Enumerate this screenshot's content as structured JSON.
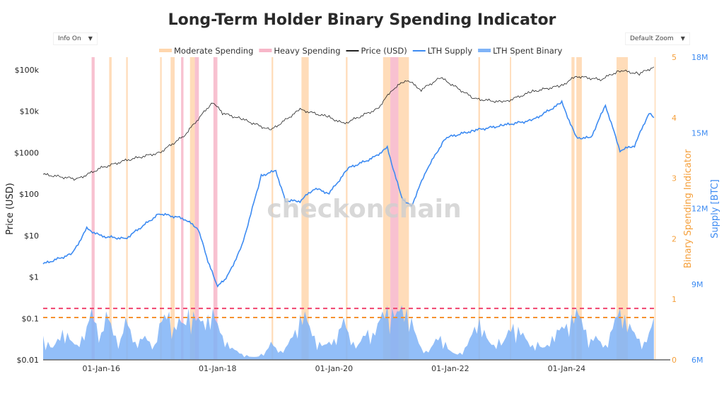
{
  "title": "Long-Term Holder Binary Spending Indicator",
  "controls": {
    "info": "Info On",
    "zoom": "Default Zoom",
    "arrow": "▼"
  },
  "watermark": "checkonchain",
  "colors": {
    "moderate": "#ffd6ad",
    "heavy": "#f7b6c8",
    "price": "#222222",
    "supply": "#3d8bf2",
    "binary": "#7fb3f7",
    "dash_heavy": "#f0436e",
    "dash_moderate": "#f5922f",
    "axis_orange": "#f5a03c",
    "axis_blue": "#3d8bf2"
  },
  "chart_data": {
    "type": "line",
    "title": "Long-Term Holder Binary Spending Indicator",
    "legend": {
      "placement": "top-center",
      "entries": [
        "Moderate Spending",
        "Heavy Spending",
        "Price (USD)",
        "LTH Supply",
        "LTH Spent Binary"
      ]
    },
    "x_range": [
      "2015-01-01",
      "2025-07-15"
    ],
    "x_ticks": [
      "01-Jan-16",
      "01-Jan-18",
      "01-Jan-20",
      "01-Jan-22",
      "01-Jan-24"
    ],
    "y_left": {
      "label": "Price (USD)",
      "scale": "log",
      "range": [
        0.01,
        100000
      ],
      "ticks": [
        "$0.01",
        "$0.1",
        "$1",
        "$10",
        "$100",
        "$1000",
        "$10k",
        "$100k"
      ]
    },
    "y_right1": {
      "label": "Binary Spending Indicator",
      "range": [
        0,
        5
      ],
      "ticks": [
        "0",
        "1",
        "2",
        "3",
        "4",
        "5"
      ]
    },
    "y_right2": {
      "label": "Supply [BTC]",
      "range": [
        6000000,
        18000000
      ],
      "ticks": [
        "6M",
        "9M",
        "12M",
        "15M",
        "18M"
      ]
    },
    "thresholds": {
      "heavy": 0.85,
      "moderate": 0.7
    },
    "price": [
      [
        "2015-01",
        300
      ],
      [
        "2015-08",
        230
      ],
      [
        "2016-01",
        430
      ],
      [
        "2016-06",
        650
      ],
      [
        "2017-01",
        1000
      ],
      [
        "2017-06",
        2500
      ],
      [
        "2017-12",
        17000
      ],
      [
        "2018-02",
        9000
      ],
      [
        "2018-06",
        6500
      ],
      [
        "2018-12",
        3500
      ],
      [
        "2019-06",
        11000
      ],
      [
        "2019-12",
        7200
      ],
      [
        "2020-03",
        5000
      ],
      [
        "2020-10",
        11500
      ],
      [
        "2021-01",
        33000
      ],
      [
        "2021-04",
        58000
      ],
      [
        "2021-07",
        33000
      ],
      [
        "2021-11",
        65000
      ],
      [
        "2022-06",
        20000
      ],
      [
        "2022-12",
        16500
      ],
      [
        "2023-06",
        30000
      ],
      [
        "2023-12",
        42000
      ],
      [
        "2024-03",
        70000
      ],
      [
        "2024-08",
        58000
      ],
      [
        "2024-12",
        97000
      ],
      [
        "2025-04",
        80000
      ],
      [
        "2025-07",
        118000
      ]
    ],
    "lth_supply_millions": [
      [
        "2015-01",
        9.8
      ],
      [
        "2015-07",
        10.2
      ],
      [
        "2015-10",
        11.2
      ],
      [
        "2016-01",
        10.9
      ],
      [
        "2016-06",
        10.8
      ],
      [
        "2017-01",
        11.8
      ],
      [
        "2017-06",
        11.6
      ],
      [
        "2017-09",
        11.2
      ],
      [
        "2017-11",
        9.9
      ],
      [
        "2018-01",
        8.9
      ],
      [
        "2018-03",
        9.3
      ],
      [
        "2018-06",
        10.5
      ],
      [
        "2018-10",
        13.3
      ],
      [
        "2019-01",
        13.5
      ],
      [
        "2019-03",
        12.3
      ],
      [
        "2019-06",
        12.3
      ],
      [
        "2019-09",
        12.8
      ],
      [
        "2019-12",
        12.6
      ],
      [
        "2020-04",
        13.6
      ],
      [
        "2020-09",
        14.0
      ],
      [
        "2020-12",
        14.4
      ],
      [
        "2021-03",
        12.4
      ],
      [
        "2021-05",
        12.1
      ],
      [
        "2021-08",
        13.5
      ],
      [
        "2021-12",
        14.8
      ],
      [
        "2022-06",
        15.1
      ],
      [
        "2022-12",
        15.3
      ],
      [
        "2023-06",
        15.5
      ],
      [
        "2023-12",
        16.2
      ],
      [
        "2024-03",
        14.8
      ],
      [
        "2024-06",
        14.8
      ],
      [
        "2024-09",
        16.1
      ],
      [
        "2024-12",
        14.3
      ],
      [
        "2025-03",
        14.5
      ],
      [
        "2025-06",
        15.8
      ],
      [
        "2025-07",
        15.6
      ]
    ],
    "lth_spent_binary_monthly_from": "2015-01",
    "lth_spent_binary": [
      0.4,
      0.3,
      0.2,
      0.35,
      0.5,
      0.45,
      0.3,
      0.25,
      0.4,
      0.55,
      0.85,
      0.6,
      0.45,
      0.8,
      0.6,
      0.4,
      0.35,
      0.7,
      0.5,
      0.3,
      0.35,
      0.4,
      0.3,
      0.25,
      0.6,
      0.75,
      0.8,
      0.55,
      0.7,
      0.6,
      0.85,
      0.8,
      0.7,
      0.65,
      0.75,
      0.85,
      0.6,
      0.4,
      0.3,
      0.2,
      0.15,
      0.1,
      0.08,
      0.05,
      0.05,
      0.1,
      0.15,
      0.3,
      0.2,
      0.15,
      0.2,
      0.35,
      0.5,
      0.75,
      0.8,
      0.55,
      0.4,
      0.3,
      0.25,
      0.3,
      0.35,
      0.5,
      0.7,
      0.45,
      0.3,
      0.25,
      0.4,
      0.5,
      0.45,
      0.6,
      0.8,
      0.9,
      0.85,
      0.8,
      0.9,
      0.85,
      0.7,
      0.4,
      0.2,
      0.15,
      0.2,
      0.35,
      0.4,
      0.3,
      0.15,
      0.1,
      0.12,
      0.2,
      0.35,
      0.55,
      0.7,
      0.5,
      0.3,
      0.25,
      0.35,
      0.3,
      0.5,
      0.6,
      0.55,
      0.45,
      0.3,
      0.25,
      0.3,
      0.2,
      0.25,
      0.4,
      0.5,
      0.55,
      0.6,
      0.75,
      0.85,
      0.7,
      0.5,
      0.35,
      0.4,
      0.3,
      0.25,
      0.45,
      0.7,
      0.85,
      0.75,
      0.6,
      0.45,
      0.35,
      0.3,
      0.45,
      0.7
    ],
    "spending_bands": [
      {
        "start": "2015-11-01",
        "end": "2015-11-20",
        "type": "heavy"
      },
      {
        "start": "2016-02-20",
        "end": "2016-03-05",
        "type": "moderate"
      },
      {
        "start": "2016-06-05",
        "end": "2016-06-15",
        "type": "moderate"
      },
      {
        "start": "2017-01-05",
        "end": "2017-01-15",
        "type": "moderate"
      },
      {
        "start": "2017-03-10",
        "end": "2017-04-05",
        "type": "moderate"
      },
      {
        "start": "2017-05-15",
        "end": "2017-05-30",
        "type": "heavy"
      },
      {
        "start": "2017-07-10",
        "end": "2017-08-10",
        "type": "moderate"
      },
      {
        "start": "2017-08-10",
        "end": "2017-09-05",
        "type": "heavy"
      },
      {
        "start": "2017-12-05",
        "end": "2017-12-30",
        "type": "heavy"
      },
      {
        "start": "2018-12-05",
        "end": "2018-12-15",
        "type": "moderate"
      },
      {
        "start": "2019-06-10",
        "end": "2019-07-25",
        "type": "moderate"
      },
      {
        "start": "2020-03-15",
        "end": "2020-03-25",
        "type": "moderate"
      },
      {
        "start": "2020-11-05",
        "end": "2020-12-20",
        "type": "moderate"
      },
      {
        "start": "2020-12-20",
        "end": "2021-02-10",
        "type": "heavy"
      },
      {
        "start": "2021-02-10",
        "end": "2021-04-15",
        "type": "moderate"
      },
      {
        "start": "2022-06-25",
        "end": "2022-07-05",
        "type": "moderate"
      },
      {
        "start": "2023-01-10",
        "end": "2023-01-18",
        "type": "moderate"
      },
      {
        "start": "2024-02-01",
        "end": "2024-02-20",
        "type": "moderate"
      },
      {
        "start": "2024-03-01",
        "end": "2024-04-05",
        "type": "moderate"
      },
      {
        "start": "2024-11-10",
        "end": "2025-01-20",
        "type": "moderate"
      },
      {
        "start": "2025-07-05",
        "end": "2025-07-12",
        "type": "moderate"
      }
    ]
  }
}
